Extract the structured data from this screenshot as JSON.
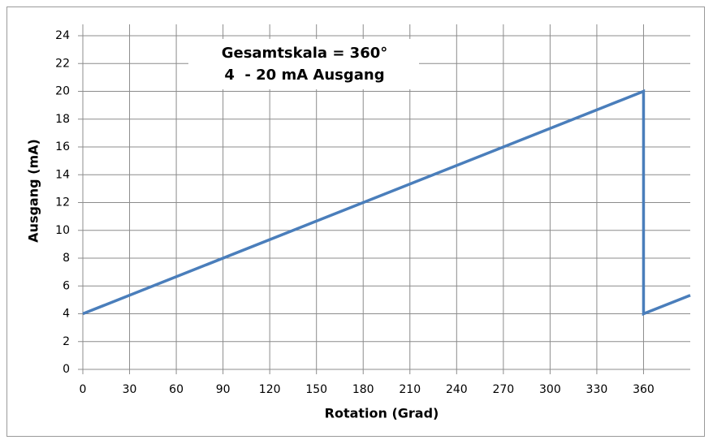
{
  "chart_data": {
    "type": "line",
    "annotation": [
      "Gesamtskala = 360°",
      "4  - 20 mA Ausgang"
    ],
    "x_label": "Rotation (Grad)",
    "y_label": "Ausgang (mA)",
    "x": [
      0,
      360,
      360,
      390
    ],
    "values": [
      4,
      20,
      4,
      5.33
    ],
    "color": "#4a7ebb",
    "xlim": [
      0,
      390
    ],
    "xticks": [
      0,
      30,
      60,
      90,
      120,
      150,
      180,
      210,
      240,
      270,
      300,
      330,
      360
    ],
    "ylim": [
      0,
      24
    ],
    "yticks": [
      0,
      2,
      4,
      6,
      8,
      10,
      12,
      14,
      16,
      18,
      20,
      22,
      24
    ],
    "grid": true
  }
}
